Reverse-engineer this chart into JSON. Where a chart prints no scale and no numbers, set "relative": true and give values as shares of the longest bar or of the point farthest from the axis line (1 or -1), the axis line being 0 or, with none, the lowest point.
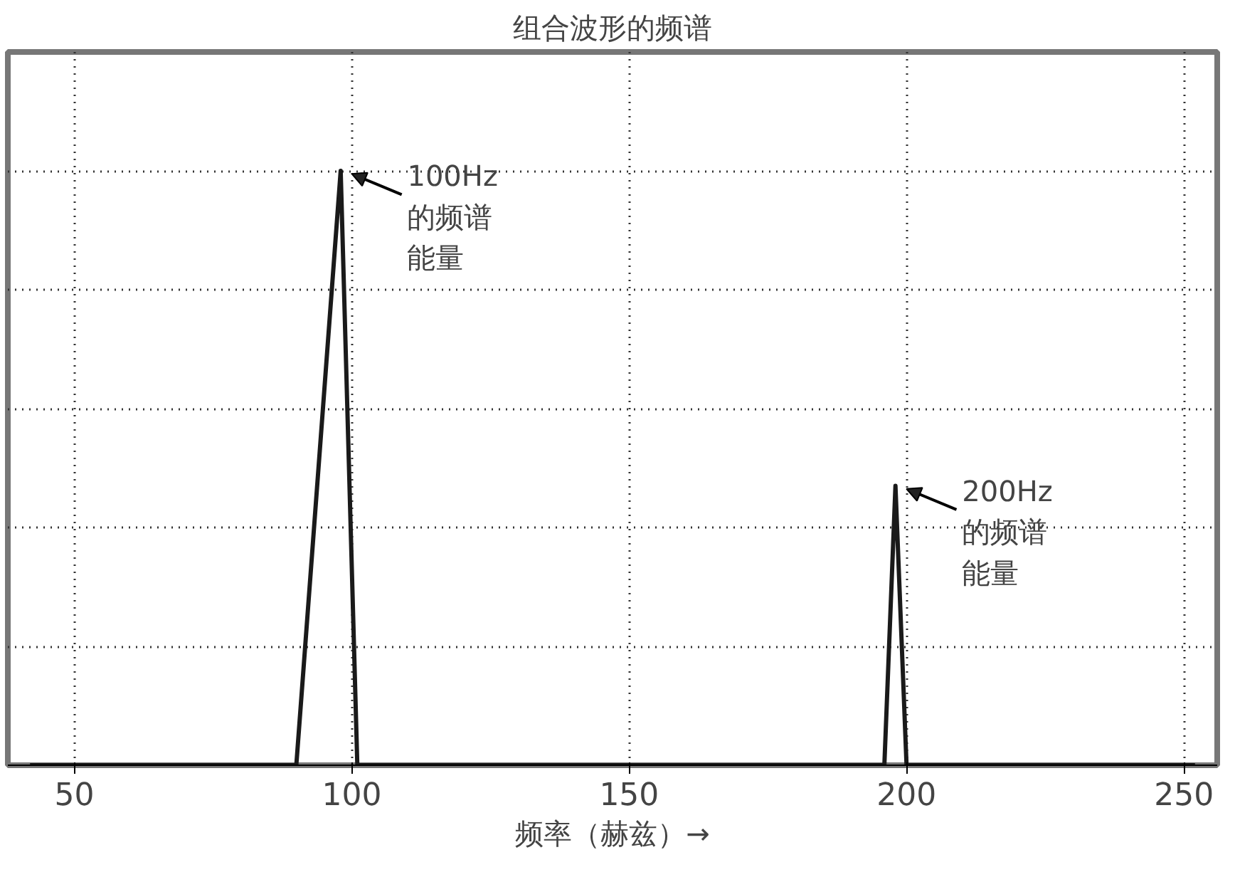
{
  "chart_data": {
    "type": "line",
    "title": "组合波形的频谱",
    "xlabel": "频率（赫兹）→",
    "relative": true,
    "x": [
      42,
      90,
      98,
      101,
      196,
      198,
      200,
      252
    ],
    "series": [
      {
        "color": "#1a1a1a",
        "values": [
          0,
          0,
          1,
          0,
          0,
          0.47,
          0,
          0
        ]
      }
    ],
    "xlim": [
      38,
      256
    ],
    "xticks": [
      50,
      100,
      150,
      200,
      250
    ],
    "grid": true,
    "line_style": "solid",
    "marker": "none",
    "annotations": [
      {
        "text": "100Hz的频谱能量",
        "x": 98,
        "y": 1
      },
      {
        "text": "200Hz的频谱能量",
        "x": 198,
        "y": 0.47
      }
    ]
  }
}
